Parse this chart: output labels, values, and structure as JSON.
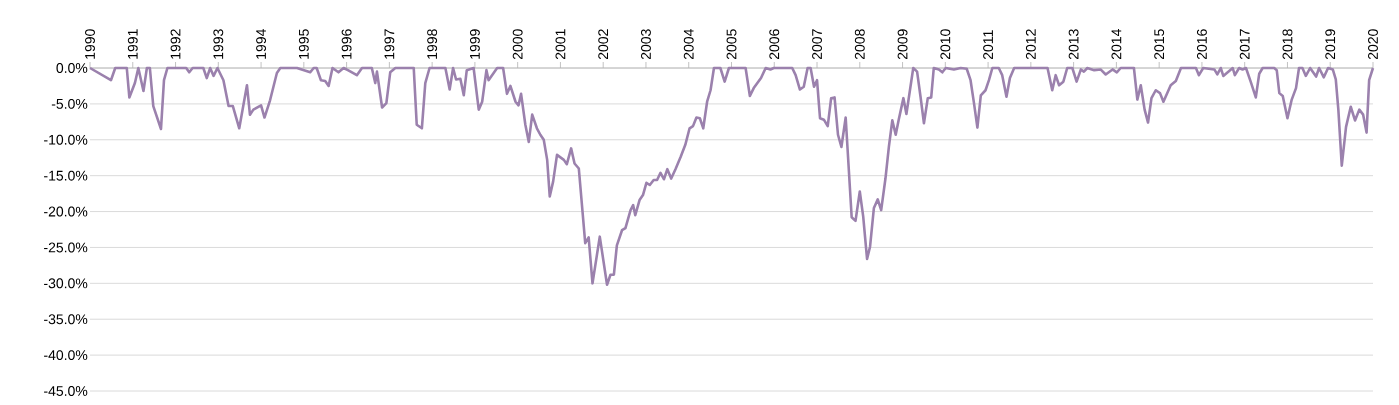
{
  "chart_data": {
    "type": "line",
    "xlim": [
      1990,
      2020
    ],
    "ylim": [
      -45,
      0
    ],
    "grid": "y",
    "line_style": "solid",
    "xticks": [
      1990,
      1991,
      1992,
      1993,
      1994,
      1995,
      1996,
      1997,
      1998,
      1999,
      2000,
      2001,
      2002,
      2003,
      2004,
      2005,
      2006,
      2007,
      2008,
      2009,
      2010,
      2011,
      2012,
      2013,
      2014,
      2015,
      2016,
      2017,
      2018,
      2019,
      2020
    ],
    "yticks": [
      {
        "value": 0,
        "label": "0.0%"
      },
      {
        "value": -5,
        "label": "-5.0%"
      },
      {
        "value": -10,
        "label": "-10.0%"
      },
      {
        "value": -15,
        "label": "-15.0%"
      },
      {
        "value": -20,
        "label": "-20.0%"
      },
      {
        "value": -25,
        "label": "-25.0%"
      },
      {
        "value": -30,
        "label": "-30.0%"
      },
      {
        "value": -35,
        "label": "-35.0%"
      },
      {
        "value": -40,
        "label": "-40.0%"
      },
      {
        "value": -45,
        "label": "-45.0%"
      }
    ],
    "series": [
      {
        "color": "#9b81ad",
        "x": [
          1990.0,
          1990.49,
          1990.59,
          1990.86,
          1990.92,
          1991.05,
          1991.13,
          1991.25,
          1991.33,
          1991.4,
          1991.48,
          1991.66,
          1991.73,
          1991.81,
          1992.25,
          1992.32,
          1992.4,
          1992.65,
          1992.73,
          1992.81,
          1992.89,
          1992.98,
          1993.12,
          1993.24,
          1993.34,
          1993.49,
          1993.67,
          1993.74,
          1993.82,
          1994.0,
          1994.08,
          1994.21,
          1994.37,
          1994.45,
          1994.84,
          1995.15,
          1995.23,
          1995.3,
          1995.4,
          1995.5,
          1995.58,
          1995.67,
          1995.81,
          1995.93,
          1996.03,
          1996.24,
          1996.36,
          1996.59,
          1996.67,
          1996.71,
          1996.83,
          1996.93,
          1997.02,
          1997.14,
          1997.57,
          1997.64,
          1997.76,
          1997.84,
          1997.94,
          1998.31,
          1998.41,
          1998.49,
          1998.56,
          1998.66,
          1998.74,
          1998.81,
          1998.97,
          1999.09,
          1999.17,
          1999.27,
          1999.32,
          1999.52,
          1999.66,
          1999.75,
          1999.83,
          1999.95,
          2000.02,
          2000.08,
          2000.18,
          2000.26,
          2000.34,
          2000.45,
          2000.53,
          2000.61,
          2000.69,
          2000.75,
          2000.83,
          2000.92,
          2001.08,
          2001.15,
          2001.25,
          2001.33,
          2001.43,
          2001.58,
          2001.66,
          2001.75,
          2001.92,
          2002.09,
          2002.17,
          2002.25,
          2002.32,
          2002.44,
          2002.52,
          2002.64,
          2002.7,
          2002.75,
          2002.85,
          2002.93,
          2003.01,
          2003.09,
          2003.18,
          2003.26,
          2003.34,
          2003.42,
          2003.5,
          2003.59,
          2003.69,
          2003.81,
          2003.92,
          2004.02,
          2004.1,
          2004.18,
          2004.26,
          2004.34,
          2004.43,
          2004.51,
          2004.59,
          2004.74,
          2004.84,
          2004.94,
          2005.33,
          2005.43,
          2005.52,
          2005.69,
          2005.8,
          2005.91,
          2005.99,
          2006.42,
          2006.5,
          2006.6,
          2006.69,
          2006.78,
          2006.85,
          2006.93,
          2007.0,
          2007.07,
          2007.16,
          2007.25,
          2007.33,
          2007.41,
          2007.49,
          2007.57,
          2007.67,
          2007.81,
          2007.9,
          2008.0,
          2008.08,
          2008.17,
          2008.24,
          2008.33,
          2008.42,
          2008.5,
          2008.6,
          2008.68,
          2008.76,
          2008.84,
          2008.91,
          2009.02,
          2009.09,
          2009.25,
          2009.34,
          2009.42,
          2009.5,
          2009.59,
          2009.67,
          2009.73,
          2009.85,
          2009.93,
          2010.01,
          2010.2,
          2010.36,
          2010.5,
          2010.59,
          2010.67,
          2010.75,
          2010.83,
          2010.94,
          2011.02,
          2011.1,
          2011.25,
          2011.33,
          2011.43,
          2011.51,
          2011.61,
          2012.39,
          2012.5,
          2012.58,
          2012.66,
          2012.76,
          2012.85,
          2012.97,
          2013.07,
          2013.17,
          2013.24,
          2013.32,
          2013.48,
          2013.63,
          2013.75,
          2013.91,
          2014.01,
          2014.1,
          2014.41,
          2014.49,
          2014.57,
          2014.66,
          2014.74,
          2014.82,
          2014.92,
          2015.02,
          2015.1,
          2015.27,
          2015.39,
          2015.51,
          2015.86,
          2015.93,
          2016.03,
          2016.29,
          2016.36,
          2016.44,
          2016.5,
          2016.72,
          2016.77,
          2016.87,
          2016.95,
          2017.03,
          2017.14,
          2017.26,
          2017.34,
          2017.42,
          2017.69,
          2017.75,
          2017.81,
          2017.89,
          2018.0,
          2018.1,
          2018.2,
          2018.27,
          2018.35,
          2018.43,
          2018.53,
          2018.67,
          2018.74,
          2018.85,
          2018.95,
          2019.06,
          2019.13,
          2019.19,
          2019.27,
          2019.37,
          2019.48,
          2019.58,
          2019.68,
          2019.77,
          2019.85,
          2019.91,
          2020.0
        ],
        "values": [
          0,
          -1.7,
          0,
          0,
          -4.1,
          -2.1,
          0,
          -3.2,
          0,
          0,
          -5.3,
          -8.5,
          -1.7,
          0,
          0,
          -0.6,
          0,
          0,
          -1.4,
          0,
          -1.1,
          0,
          -1.7,
          -5.3,
          -5.3,
          -8.4,
          -2.4,
          -6.5,
          -5.8,
          -5.2,
          -6.9,
          -4.5,
          -0.7,
          0,
          0,
          -0.6,
          0,
          0,
          -1.7,
          -1.8,
          -2.5,
          0,
          -0.6,
          0,
          -0.3,
          -1.0,
          0,
          0,
          -2.1,
          -0.5,
          -5.5,
          -4.9,
          -0.6,
          0,
          0,
          -7.9,
          -8.4,
          -2.1,
          0,
          0,
          -3.0,
          0,
          -1.6,
          -1.5,
          -3.8,
          -0.3,
          0,
          -5.8,
          -4.7,
          -0.3,
          -1.7,
          0,
          0,
          -3.6,
          -2.5,
          -4.7,
          -5.2,
          -3.6,
          -7.9,
          -10.3,
          -6.5,
          -8.4,
          -9.3,
          -10.0,
          -12.8,
          -17.9,
          -15.8,
          -12.1,
          -12.8,
          -13.4,
          -11.2,
          -13.3,
          -14.0,
          -24.4,
          -23.6,
          -30.0,
          -23.5,
          -30.2,
          -28.8,
          -28.8,
          -24.7,
          -22.6,
          -22.3,
          -19.8,
          -19.1,
          -20.5,
          -18.4,
          -17.7,
          -16.0,
          -16.3,
          -15.6,
          -15.6,
          -14.6,
          -15.5,
          -14.1,
          -15.4,
          -14.1,
          -12.4,
          -10.7,
          -8.4,
          -8.1,
          -6.9,
          -7.0,
          -8.4,
          -4.7,
          -3.1,
          0,
          0,
          -1.9,
          0,
          0,
          -3.9,
          -2.8,
          -1.4,
          0,
          -0.2,
          0,
          0,
          -1.0,
          -3.0,
          -2.6,
          0,
          0,
          -2.6,
          -1.7,
          -7.0,
          -7.2,
          -8.1,
          -4.2,
          -4.1,
          -9.3,
          -11.0,
          -6.9,
          -20.8,
          -21.3,
          -17.2,
          -20.7,
          -26.6,
          -24.9,
          -19.5,
          -18.3,
          -19.8,
          -15.4,
          -11.0,
          -7.3,
          -9.3,
          -7.2,
          -4.2,
          -6.4,
          0,
          -0.5,
          -4.0,
          -7.7,
          -4.2,
          -4.1,
          0,
          -0.2,
          -0.6,
          0,
          -0.2,
          0,
          -0.1,
          -1.7,
          -4.9,
          -8.3,
          -3.8,
          -3.1,
          -1.7,
          0,
          0,
          -1.0,
          -4.0,
          -1.4,
          0,
          0,
          -3.1,
          -1.0,
          -2.4,
          -1.9,
          0,
          0,
          -1.9,
          -0.2,
          -0.5,
          0,
          -0.3,
          -0.2,
          -0.9,
          -0.2,
          -0.6,
          0,
          0,
          -4.4,
          -2.4,
          -5.8,
          -7.6,
          -4.2,
          -3.1,
          -3.5,
          -4.7,
          -2.4,
          -1.8,
          0,
          0,
          -1.0,
          0,
          -0.2,
          -0.9,
          0,
          -1.1,
          0,
          -1.0,
          0,
          -0.2,
          0,
          -1.9,
          -4.1,
          -0.8,
          0,
          0,
          -0.3,
          -3.5,
          -3.9,
          -7.0,
          -4.4,
          -2.8,
          0,
          0,
          -1.1,
          0,
          -1.2,
          0,
          -1.3,
          0,
          -0.2,
          -1.6,
          -5.8,
          -13.6,
          -8.2,
          -5.4,
          -7.3,
          -5.8,
          -6.5,
          -9.0,
          -1.7,
          0
        ]
      }
    ]
  }
}
